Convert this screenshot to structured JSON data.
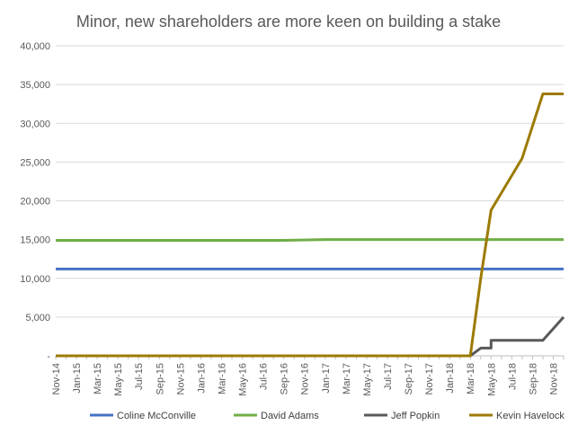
{
  "chart_data": {
    "type": "line",
    "title": "Minor, new shareholders are more keen on building a stake",
    "xlabel": "",
    "ylabel": "",
    "ylim": [
      0,
      40000
    ],
    "y_ticks": [
      0,
      5000,
      10000,
      15000,
      20000,
      25000,
      30000,
      35000,
      40000
    ],
    "y_tick_labels": [
      "-",
      "5,000",
      "10,000",
      "15,000",
      "20,000",
      "25,000",
      "30,000",
      "35,000",
      "40,000"
    ],
    "x_tick_labels": [
      "Nov-14",
      "Jan-15",
      "Mar-15",
      "May-15",
      "Jul-15",
      "Sep-15",
      "Nov-15",
      "Jan-16",
      "Mar-16",
      "May-16",
      "Jul-16",
      "Sep-16",
      "Nov-16",
      "Jan-17",
      "Mar-17",
      "May-17",
      "Jul-17",
      "Sep-17",
      "Nov-17",
      "Jan-18",
      "Mar-18",
      "May-18",
      "Jul-18",
      "Sep-18",
      "Nov-18"
    ],
    "grid": true,
    "legend": "bottom",
    "series": [
      {
        "name": "Coline McConville",
        "color": "#4472c4",
        "points": [
          [
            "Nov-14",
            11200
          ],
          [
            "Dec-18",
            11200
          ]
        ]
      },
      {
        "name": "David Adams",
        "color": "#70ad47",
        "points": [
          [
            "Nov-14",
            14900
          ],
          [
            "Sep-16",
            14900
          ],
          [
            "Jan-17",
            15000
          ],
          [
            "Dec-18",
            15000
          ]
        ]
      },
      {
        "name": "Jeff Popkin",
        "color": "#595959",
        "points": [
          [
            "Nov-14",
            0
          ],
          [
            "Mar-18",
            0
          ],
          [
            "Apr-18",
            1000
          ],
          [
            "May-18",
            1000
          ],
          [
            "May-18",
            2000
          ],
          [
            "Oct-18",
            2000
          ],
          [
            "Dec-18",
            5000
          ]
        ]
      },
      {
        "name": "Kevin Havelock",
        "color": "#9c7a00",
        "points": [
          [
            "Nov-14",
            0
          ],
          [
            "Mar-18",
            0
          ],
          [
            "Apr-18",
            10000
          ],
          [
            "May-18",
            18800
          ],
          [
            "Aug-18",
            25500
          ],
          [
            "Oct-18",
            33800
          ],
          [
            "Dec-18",
            33800
          ]
        ]
      }
    ]
  }
}
